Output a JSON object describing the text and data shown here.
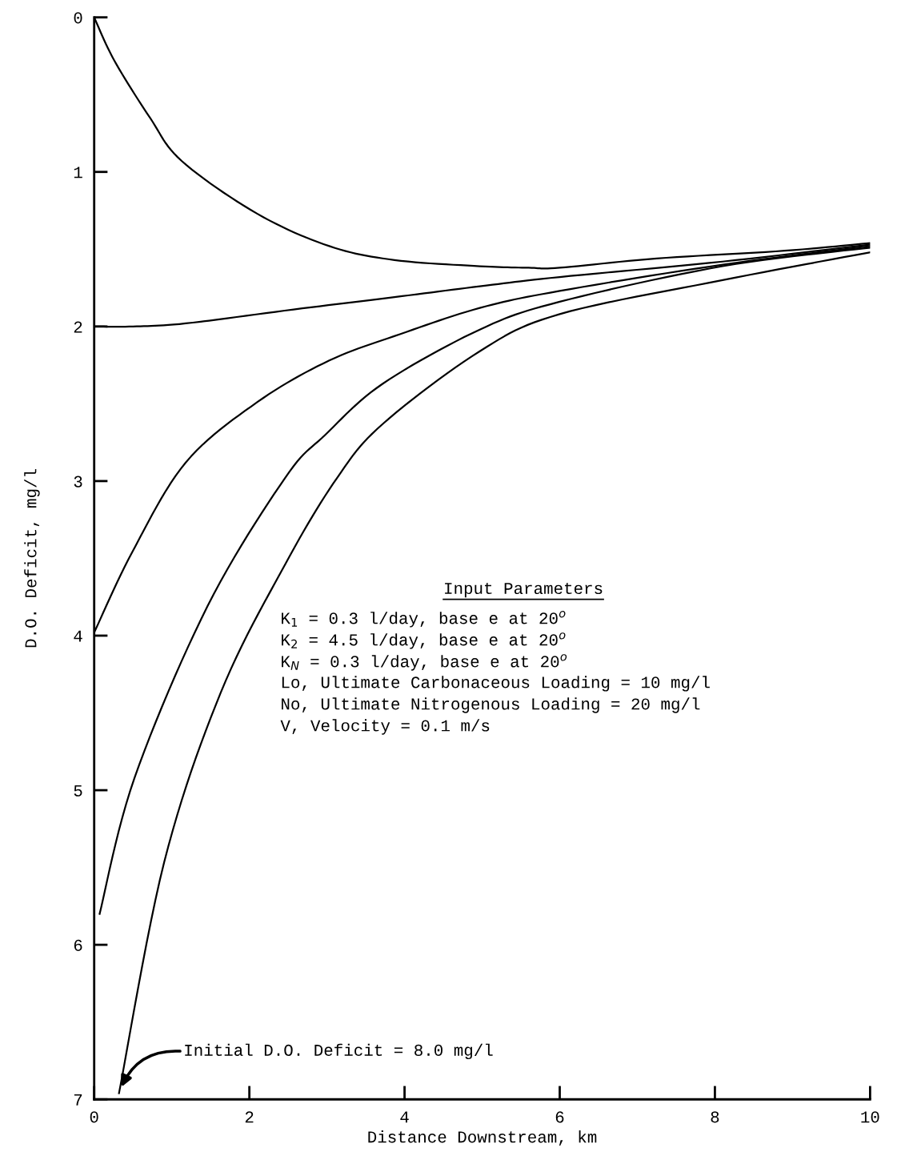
{
  "chart_data": {
    "type": "line",
    "xlabel": "Distance Downstream, km",
    "ylabel": "D.O. Deficit, mg/l",
    "xlim": [
      0,
      10
    ],
    "ylim": [
      7,
      0
    ],
    "xticks": [
      0,
      2,
      4,
      6,
      8,
      10
    ],
    "yticks": [
      0,
      1,
      2,
      3,
      4,
      5,
      6,
      7
    ],
    "grid": false,
    "legend": false,
    "series": [
      {
        "color": "#000000",
        "x": [
          0,
          0.26,
          0.72,
          1.13,
          2.1,
          3.03,
          3.87,
          4.97,
          5.6,
          6.0,
          7.25,
          8.9,
          10
        ],
        "values": [
          0,
          0.28,
          0.65,
          0.93,
          1.27,
          1.48,
          1.57,
          1.61,
          1.62,
          1.62,
          1.56,
          1.51,
          1.46
        ]
      },
      {
        "color": "#000000",
        "x": [
          0,
          0.5,
          1.18,
          2.57,
          3.87,
          4.97,
          6.0,
          8.1,
          10
        ],
        "values": [
          2.0,
          2.0,
          1.98,
          1.89,
          1.81,
          1.74,
          1.68,
          1.58,
          1.47
        ]
      },
      {
        "color": "#000000",
        "x": [
          0,
          0.49,
          1.18,
          2.1,
          3.03,
          3.94,
          4.97,
          6.0,
          8.1,
          10
        ],
        "values": [
          3.98,
          3.46,
          2.88,
          2.49,
          2.22,
          2.05,
          1.88,
          1.77,
          1.6,
          1.48
        ]
      },
      {
        "color": "#000000",
        "x": [
          0.07,
          0.52,
          1.46,
          2.46,
          2.98,
          3.72,
          4.97,
          6.0,
          8.1,
          10
        ],
        "values": [
          5.8,
          4.92,
          3.81,
          2.98,
          2.7,
          2.37,
          2.02,
          1.84,
          1.61,
          1.49
        ]
      },
      {
        "color": "#000000",
        "x": [
          0.32,
          0.9,
          1.63,
          2.46,
          3.13,
          3.72,
          4.97,
          6.0,
          8.1,
          10
        ],
        "values": [
          6.96,
          5.47,
          4.37,
          3.54,
          2.98,
          2.63,
          2.16,
          1.92,
          1.7,
          1.52
        ]
      }
    ],
    "annotations": [
      {
        "text": "Initial D.O. Deficit = 8.0 mg/l",
        "x": 0.35,
        "y": 6.92
      },
      "Input Parameters",
      "K$_{1}$ = 0.3 l/day, base e at 20$^{o}$",
      "K$_{2}$ = 4.5 l/day, base e at 20$^{o}$",
      "K$_{N}$ = 0.3 l/day, base e at 20$^{o}$",
      "Lo, Ultimate Carbonaceous Loading = 10 mg/l",
      "No, Ultimate Nitrogenous Loading = 20 mg/l",
      "V, Velocity = 0.1 m/s"
    ]
  }
}
